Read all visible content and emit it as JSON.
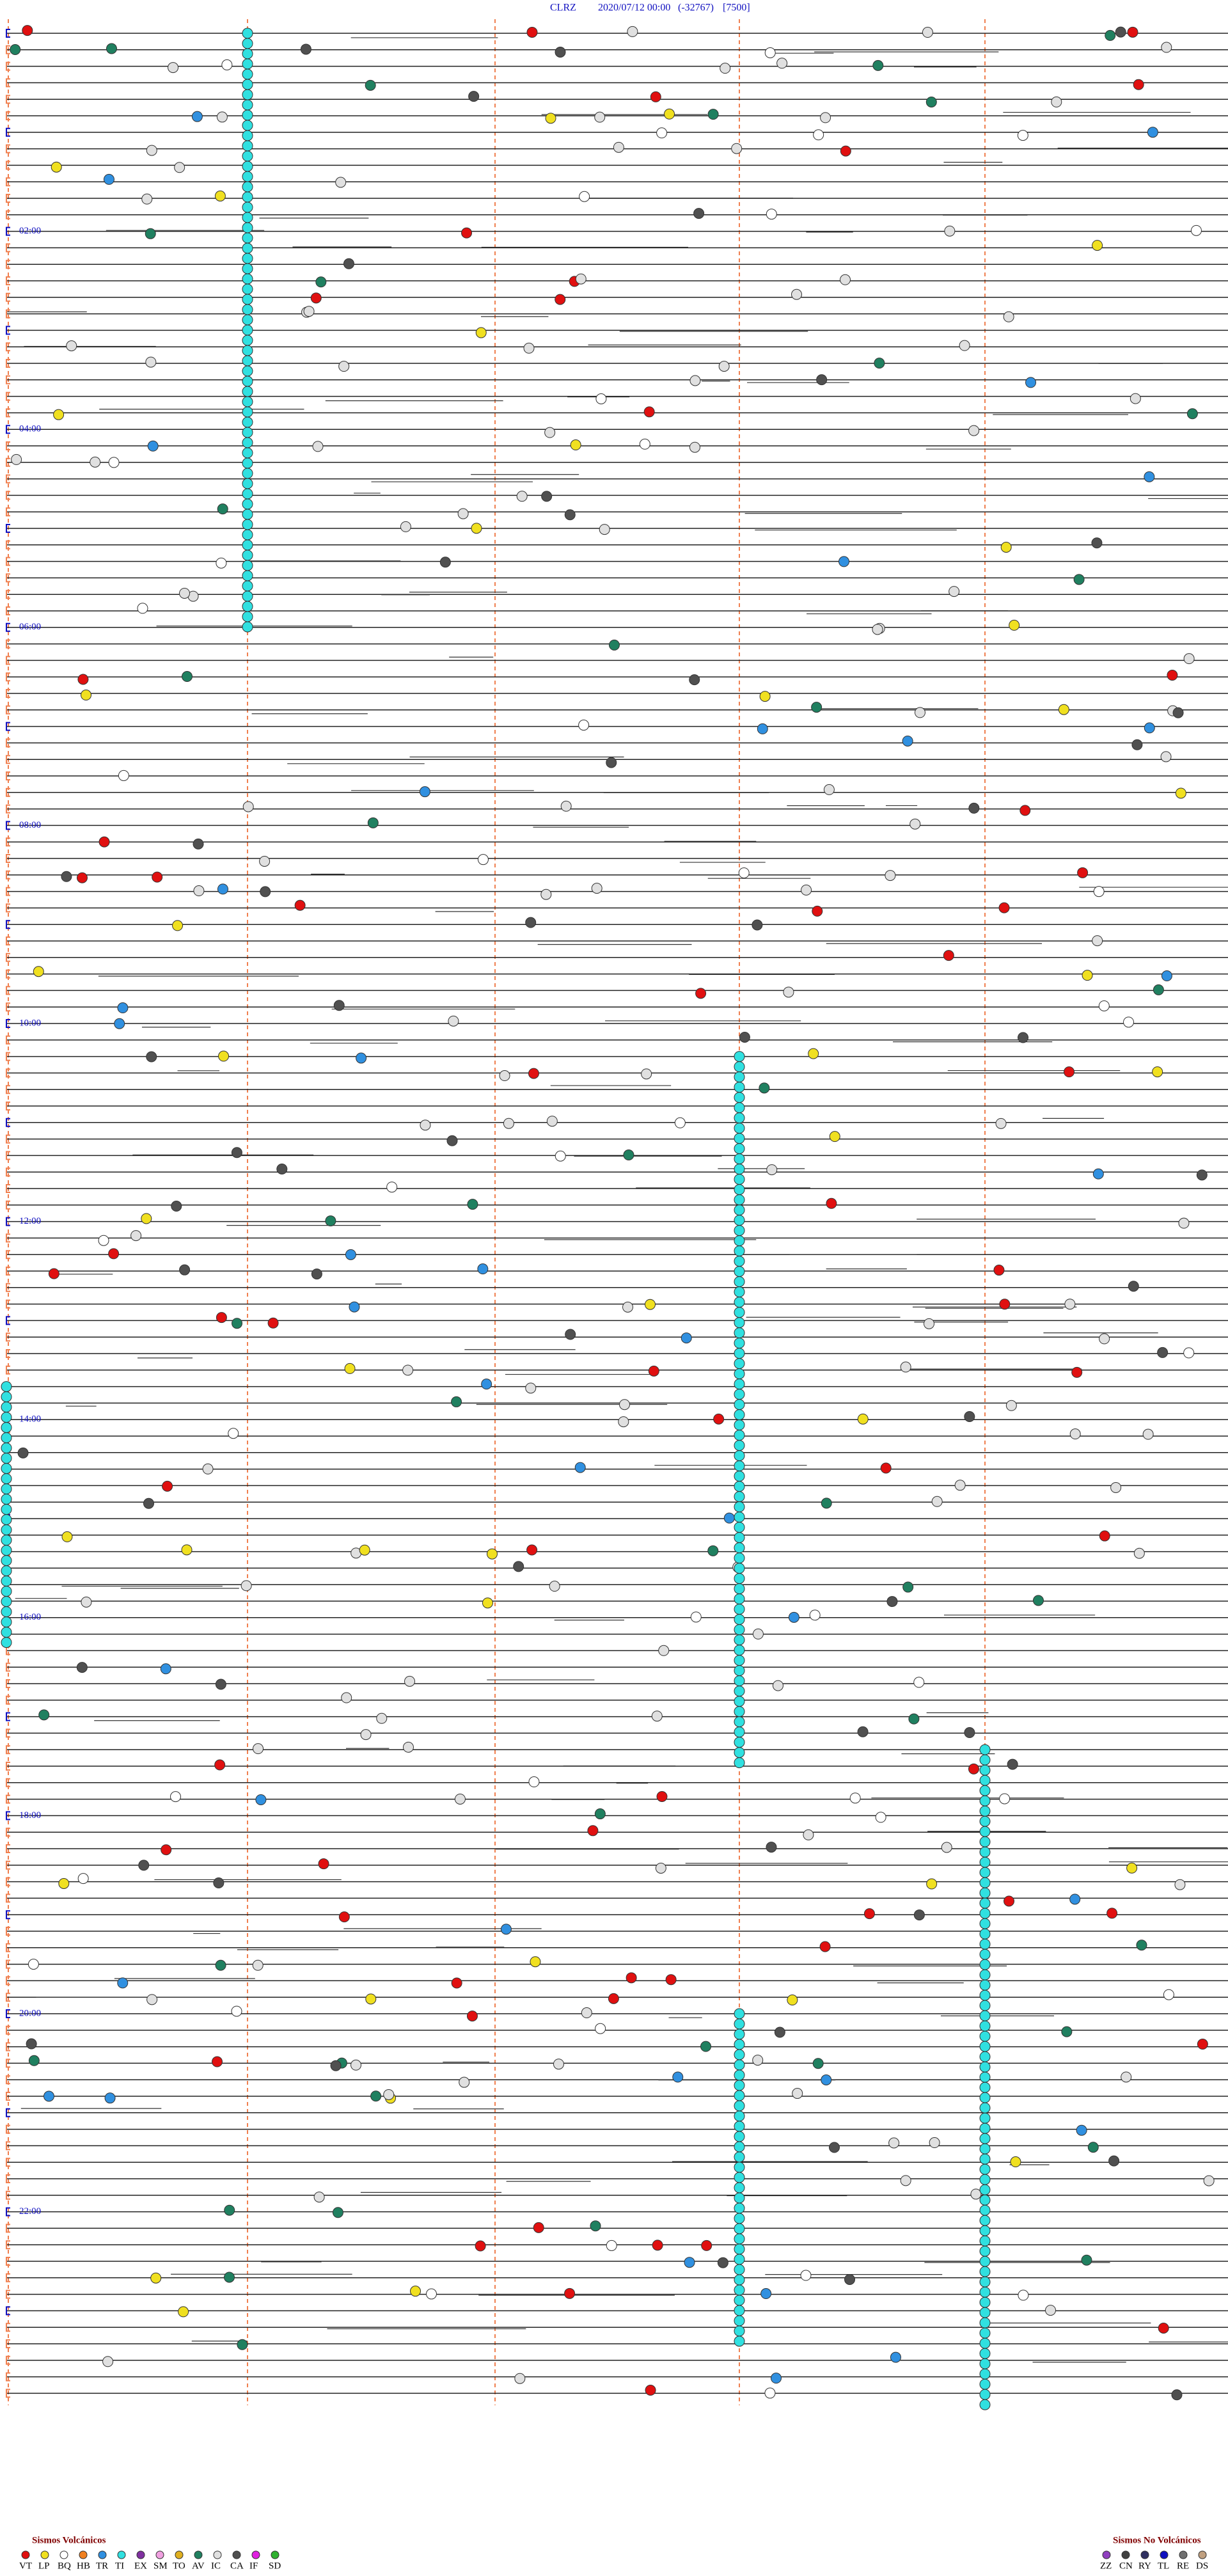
{
  "header": {
    "station": "CLRZ",
    "datetime": "2020/07/12 00:00",
    "min_count": "(-32767)",
    "scale": "[7500]"
  },
  "time_labels": [
    "02:00",
    "04:00",
    "06:00",
    "08:00",
    "10:00",
    "12:00",
    "14:00",
    "16:00",
    "18:00",
    "20:00",
    "22:00"
  ],
  "legend": {
    "volcanic": {
      "title": "Sismos Volcánicos",
      "items": [
        {
          "code": "VT",
          "color": "#e01010"
        },
        {
          "code": "LP",
          "color": "#f0e020"
        },
        {
          "code": "BQ",
          "color": "#ffffff"
        },
        {
          "code": "HB",
          "color": "#f08020"
        },
        {
          "code": "TR",
          "color": "#3090e0"
        },
        {
          "code": "TI",
          "color": "#30e0e0"
        },
        {
          "code": "EX",
          "color": "#8030a0"
        },
        {
          "code": "SM",
          "color": "#f0a0e0"
        },
        {
          "code": "TO",
          "color": "#e0b020"
        },
        {
          "code": "AV",
          "color": "#208060"
        },
        {
          "code": "IC",
          "color": "#e0e0e0"
        },
        {
          "code": "CA",
          "color": "#505050"
        },
        {
          "code": "IF",
          "color": "#e020e0"
        },
        {
          "code": "SD",
          "color": "#30b030"
        }
      ]
    },
    "non_volcanic": {
      "title": "Sismos No Volcánicos",
      "items": [
        {
          "code": "ZZ",
          "color": "#9040c0"
        },
        {
          "code": "CN",
          "color": "#404040"
        },
        {
          "code": "RY",
          "color": "#303060"
        },
        {
          "code": "TL",
          "color": "#1010c0"
        },
        {
          "code": "RE",
          "color": "#707070"
        },
        {
          "code": "DS",
          "color": "#c0a080"
        }
      ]
    }
  }
}
